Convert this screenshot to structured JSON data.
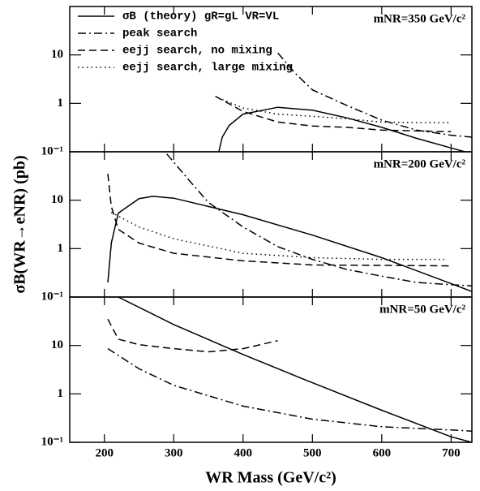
{
  "chart_data": [
    {
      "type": "line",
      "log_y": true,
      "xlim": [
        150,
        730
      ],
      "ylim": [
        0.1,
        100
      ],
      "yticks": [
        {
          "value": 0.1,
          "label": "10⁻¹"
        },
        1,
        10
      ],
      "annotation": "mNR=350 GeV/c²",
      "series": [
        {
          "name": "σB (theory) gR=gL VR=VL",
          "dash": "solid",
          "color": "#000000",
          "x": [
            365,
            370,
            380,
            400,
            450,
            500,
            550,
            600,
            650,
            700,
            720
          ],
          "values": [
            0.1,
            0.2,
            0.35,
            0.6,
            0.83,
            0.72,
            0.5,
            0.32,
            0.19,
            0.12,
            0.1
          ]
        },
        {
          "name": "peak search",
          "dash": "dashdot",
          "color": "#000000",
          "x": [
            450,
            475,
            500,
            550,
            600,
            650,
            700,
            730
          ],
          "values": [
            11,
            4.2,
            1.9,
            0.9,
            0.45,
            0.28,
            0.22,
            0.2
          ]
        },
        {
          "name": "eejj search, no mixing",
          "dash": "dash",
          "color": "#000000",
          "x": [
            360,
            400,
            450,
            500,
            550,
            600,
            650,
            700
          ],
          "values": [
            1.4,
            0.68,
            0.41,
            0.34,
            0.32,
            0.28,
            0.27,
            0.26
          ]
        },
        {
          "name": "eejj search, large mixing",
          "dash": "dot",
          "color": "#000000",
          "x": [
            370,
            400,
            450,
            500,
            550,
            600,
            650,
            700
          ],
          "values": [
            1.2,
            0.8,
            0.6,
            0.54,
            0.48,
            0.41,
            0.4,
            0.4
          ]
        }
      ]
    },
    {
      "type": "line",
      "log_y": true,
      "xlim": [
        150,
        730
      ],
      "ylim": [
        0.1,
        100
      ],
      "yticks": [
        {
          "value": 0.1,
          "label": "10⁻¹"
        },
        1,
        10
      ],
      "annotation": "mNR=200 GeV/c²",
      "ylabel": "σB(WR→eNR)  (pb)",
      "series": [
        {
          "dash": "solid",
          "color": "#000000",
          "x": [
            205,
            210,
            220,
            250,
            270,
            300,
            400,
            500,
            600,
            700,
            730
          ],
          "values": [
            0.2,
            1.3,
            5.4,
            10.8,
            12,
            11,
            5,
            1.9,
            0.65,
            0.19,
            0.13
          ]
        },
        {
          "dash": "dashdot",
          "color": "#000000",
          "x": [
            290,
            320,
            350,
            400,
            450,
            500,
            550,
            600,
            650,
            700,
            730
          ],
          "values": [
            90,
            28,
            9,
            2.8,
            1.1,
            0.6,
            0.37,
            0.27,
            0.2,
            0.18,
            0.17
          ]
        },
        {
          "dash": "dash",
          "color": "#000000",
          "x": [
            205,
            210,
            220,
            250,
            300,
            400,
            500,
            600,
            700
          ],
          "values": [
            35,
            7.4,
            2.5,
            1.3,
            0.8,
            0.56,
            0.46,
            0.45,
            0.44
          ]
        },
        {
          "dash": "dot",
          "color": "#000000",
          "x": [
            210,
            250,
            300,
            400,
            500,
            600,
            690
          ],
          "values": [
            5.6,
            2.8,
            1.6,
            0.8,
            0.65,
            0.6,
            0.6
          ]
        }
      ]
    },
    {
      "type": "line",
      "log_y": true,
      "xlim": [
        150,
        730
      ],
      "ylim": [
        0.1,
        100
      ],
      "yticks": [
        {
          "value": 0.1,
          "label": "10⁻¹"
        },
        1,
        10
      ],
      "xticks": [
        200,
        300,
        400,
        500,
        600,
        700
      ],
      "annotation": "mNR=50 GeV/c²",
      "xlabel": "WR Mass (GeV/c²)",
      "series": [
        {
          "dash": "solid",
          "color": "#000000",
          "x": [
            220,
            300,
            400,
            500,
            600,
            700,
            730
          ],
          "values": [
            100,
            27,
            6.5,
            1.7,
            0.46,
            0.13,
            0.1
          ]
        },
        {
          "dash": "dash",
          "color": "#000000",
          "x": [
            205,
            220,
            250,
            300,
            350,
            400,
            450
          ],
          "values": [
            35,
            13.5,
            10.4,
            8.6,
            7.4,
            8.6,
            12.6
          ]
        },
        {
          "dash": "dashdot",
          "color": "#000000",
          "x": [
            205,
            250,
            300,
            400,
            500,
            600,
            700,
            730
          ],
          "values": [
            8.6,
            3.3,
            1.5,
            0.56,
            0.3,
            0.21,
            0.18,
            0.17
          ]
        }
      ]
    }
  ]
}
